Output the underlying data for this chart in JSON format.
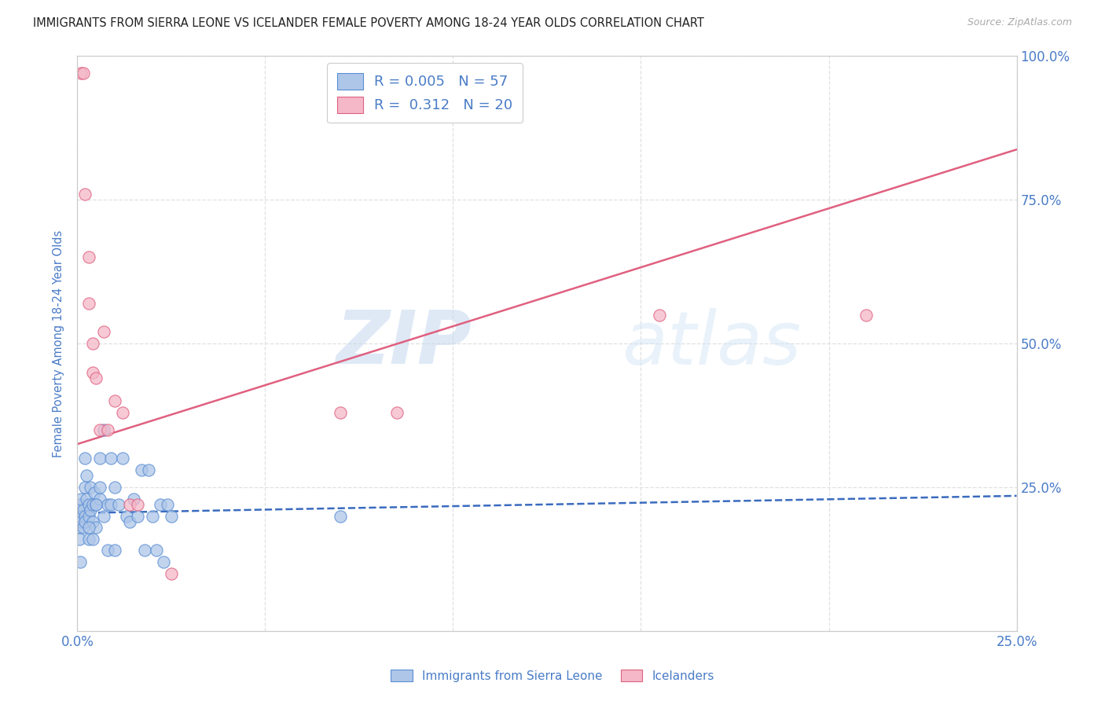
{
  "title": "IMMIGRANTS FROM SIERRA LEONE VS ICELANDER FEMALE POVERTY AMONG 18-24 YEAR OLDS CORRELATION CHART",
  "source": "Source: ZipAtlas.com",
  "ylabel": "Female Poverty Among 18-24 Year Olds",
  "xlim": [
    0.0,
    0.25
  ],
  "ylim": [
    0.0,
    1.0
  ],
  "watermark_zip": "ZIP",
  "watermark_atlas": "atlas",
  "blue_color": "#aec6e8",
  "blue_edge_color": "#5a8ed4",
  "pink_color": "#f4b8c8",
  "pink_edge_color": "#e06080",
  "blue_line_color": "#3a6bbf",
  "pink_line_color": "#e06080",
  "title_color": "#222222",
  "axis_color": "#4a7cc7",
  "legend_R_blue": "0.005",
  "legend_N_blue": "57",
  "legend_R_pink": "0.312",
  "legend_N_pink": "20",
  "blue_intercept": 0.205,
  "blue_slope": 0.12,
  "pink_intercept": 0.325,
  "pink_slope": 2.05,
  "blue_scatter_x": [
    0.0004,
    0.0005,
    0.0006,
    0.0007,
    0.0008,
    0.001,
    0.001,
    0.001,
    0.001,
    0.0015,
    0.0015,
    0.002,
    0.002,
    0.002,
    0.002,
    0.0025,
    0.0025,
    0.003,
    0.003,
    0.003,
    0.0035,
    0.0035,
    0.004,
    0.004,
    0.0045,
    0.005,
    0.005,
    0.006,
    0.006,
    0.007,
    0.007,
    0.008,
    0.008,
    0.009,
    0.009,
    0.01,
    0.01,
    0.011,
    0.012,
    0.013,
    0.014,
    0.015,
    0.016,
    0.017,
    0.018,
    0.019,
    0.02,
    0.021,
    0.022,
    0.023,
    0.024,
    0.025,
    0.003,
    0.004,
    0.005,
    0.006,
    0.07
  ],
  "blue_scatter_y": [
    0.2,
    0.18,
    0.16,
    0.22,
    0.12,
    0.2,
    0.19,
    0.22,
    0.23,
    0.21,
    0.18,
    0.3,
    0.25,
    0.2,
    0.19,
    0.23,
    0.27,
    0.22,
    0.2,
    0.16,
    0.25,
    0.21,
    0.22,
    0.19,
    0.24,
    0.22,
    0.18,
    0.3,
    0.23,
    0.2,
    0.35,
    0.22,
    0.14,
    0.3,
    0.22,
    0.25,
    0.14,
    0.22,
    0.3,
    0.2,
    0.19,
    0.23,
    0.2,
    0.28,
    0.14,
    0.28,
    0.2,
    0.14,
    0.22,
    0.12,
    0.22,
    0.2,
    0.18,
    0.16,
    0.22,
    0.25,
    0.2
  ],
  "pink_scatter_x": [
    0.001,
    0.0015,
    0.002,
    0.003,
    0.003,
    0.004,
    0.004,
    0.005,
    0.006,
    0.007,
    0.008,
    0.01,
    0.012,
    0.014,
    0.016,
    0.025,
    0.07,
    0.085,
    0.155,
    0.21
  ],
  "pink_scatter_y": [
    0.97,
    0.97,
    0.76,
    0.65,
    0.57,
    0.5,
    0.45,
    0.44,
    0.35,
    0.52,
    0.35,
    0.4,
    0.38,
    0.22,
    0.22,
    0.1,
    0.38,
    0.38,
    0.55,
    0.55
  ]
}
